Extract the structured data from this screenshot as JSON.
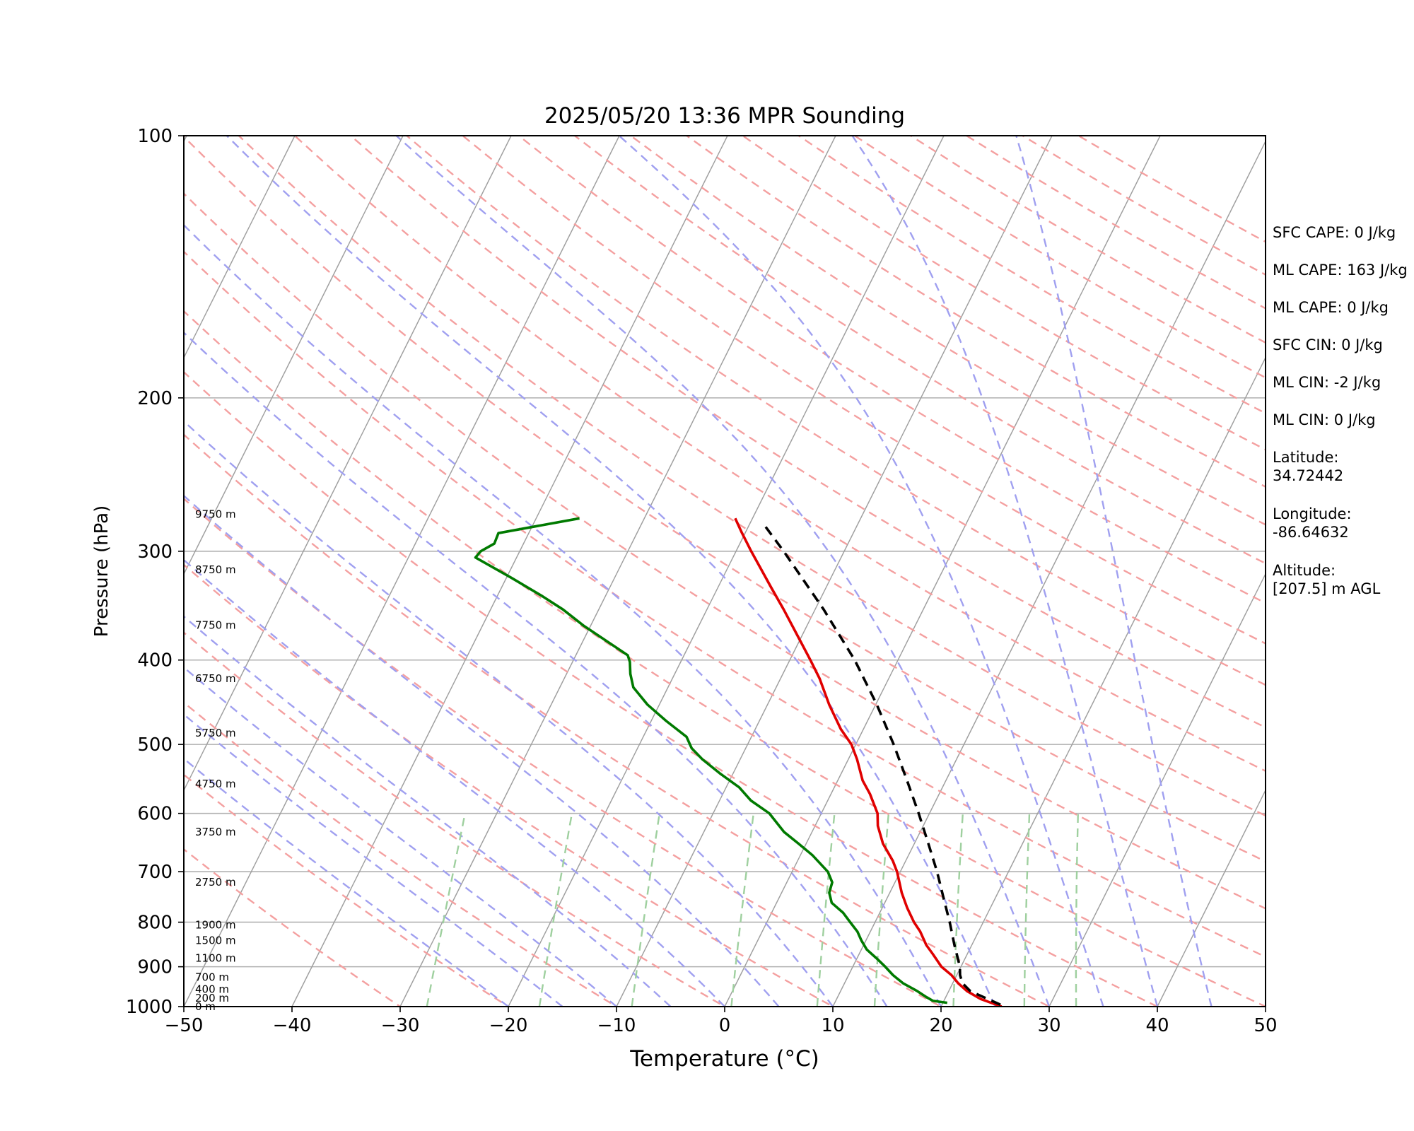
{
  "chart_data": {
    "type": "line",
    "title": "2025/05/20 13:36 MPR Sounding",
    "xlabel": "Temperature (°C)",
    "ylabel": "Pressure (hPa)",
    "xlim": [
      -50,
      50
    ],
    "ylim": [
      1000,
      100
    ],
    "y_scale": "log",
    "grid": true,
    "x_ticks": [
      "−50",
      "−40",
      "−30",
      "−20",
      "−10",
      "0",
      "10",
      "20",
      "30",
      "40",
      "50"
    ],
    "x_tick_values": [
      -50,
      -40,
      -30,
      -20,
      -10,
      0,
      10,
      20,
      30,
      40,
      50
    ],
    "y_ticks": [
      "100",
      "200",
      "300",
      "400",
      "500",
      "600",
      "700",
      "800",
      "900",
      "1000"
    ],
    "y_tick_values": [
      100,
      200,
      300,
      400,
      500,
      600,
      700,
      800,
      900,
      1000
    ],
    "series": [
      {
        "color": "#e00000",
        "style": "solid",
        "points": [
          [
            1000,
            25.6
          ],
          [
            980,
            23.3
          ],
          [
            960,
            21.7
          ],
          [
            940,
            20.5
          ],
          [
            920,
            19.5
          ],
          [
            900,
            18.2
          ],
          [
            870,
            16.8
          ],
          [
            850,
            15.8
          ],
          [
            820,
            14.6
          ],
          [
            800,
            13.6
          ],
          [
            770,
            12.3
          ],
          [
            740,
            11.1
          ],
          [
            700,
            9.7
          ],
          [
            680,
            8.8
          ],
          [
            650,
            7.1
          ],
          [
            620,
            5.8
          ],
          [
            600,
            5.2
          ],
          [
            570,
            3.6
          ],
          [
            550,
            2.3
          ],
          [
            520,
            0.8
          ],
          [
            500,
            -0.4
          ],
          [
            480,
            -2.1
          ],
          [
            450,
            -4.3
          ],
          [
            420,
            -6.4
          ],
          [
            400,
            -8.1
          ],
          [
            370,
            -10.9
          ],
          [
            350,
            -12.9
          ],
          [
            330,
            -15.1
          ],
          [
            300,
            -18.6
          ],
          [
            285,
            -20.4
          ],
          [
            275,
            -21.6
          ]
        ]
      },
      {
        "color": "#007a00",
        "style": "solid",
        "points": [
          [
            990,
            20.4
          ],
          [
            985,
            19.0
          ],
          [
            975,
            18.2
          ],
          [
            960,
            17.1
          ],
          [
            940,
            15.4
          ],
          [
            920,
            14.1
          ],
          [
            900,
            13.0
          ],
          [
            880,
            11.8
          ],
          [
            860,
            10.5
          ],
          [
            840,
            9.6
          ],
          [
            820,
            8.8
          ],
          [
            800,
            7.7
          ],
          [
            780,
            6.6
          ],
          [
            760,
            5.1
          ],
          [
            740,
            4.4
          ],
          [
            720,
            4.2
          ],
          [
            700,
            3.3
          ],
          [
            670,
            1.1
          ],
          [
            650,
            -0.7
          ],
          [
            630,
            -2.6
          ],
          [
            600,
            -4.8
          ],
          [
            580,
            -7.1
          ],
          [
            560,
            -8.8
          ],
          [
            540,
            -11.2
          ],
          [
            520,
            -13.5
          ],
          [
            505,
            -15.0
          ],
          [
            490,
            -16.0
          ],
          [
            470,
            -18.6
          ],
          [
            450,
            -21.1
          ],
          [
            430,
            -23.2
          ],
          [
            415,
            -24.1
          ],
          [
            402,
            -24.7
          ],
          [
            395,
            -25.2
          ],
          [
            380,
            -27.9
          ],
          [
            365,
            -30.7
          ],
          [
            350,
            -33.3
          ],
          [
            338,
            -35.8
          ],
          [
            322,
            -39.5
          ],
          [
            305,
            -43.8
          ],
          [
            300,
            -43.6
          ],
          [
            294,
            -42.7
          ],
          [
            286,
            -42.8
          ],
          [
            275,
            -36.0
          ]
        ]
      },
      {
        "color": "#000000",
        "style": "dashed",
        "points": [
          [
            995,
            25.4
          ],
          [
            960,
            22.0
          ],
          [
            940,
            20.9
          ],
          [
            920,
            20.3
          ],
          [
            900,
            19.9
          ],
          [
            850,
            18.4
          ],
          [
            800,
            16.9
          ],
          [
            750,
            15.2
          ],
          [
            700,
            13.4
          ],
          [
            650,
            11.3
          ],
          [
            600,
            9.0
          ],
          [
            550,
            6.4
          ],
          [
            500,
            3.5
          ],
          [
            450,
            0.1
          ],
          [
            400,
            -4.0
          ],
          [
            350,
            -9.2
          ],
          [
            300,
            -15.6
          ],
          [
            278,
            -18.9
          ]
        ]
      }
    ],
    "height_labels": [
      {
        "p": 1000,
        "text": "0 m"
      },
      {
        "p": 978,
        "text": "200 m"
      },
      {
        "p": 955,
        "text": "400 m"
      },
      {
        "p": 925,
        "text": "700 m"
      },
      {
        "p": 880,
        "text": "1100 m"
      },
      {
        "p": 840,
        "text": "1500 m"
      },
      {
        "p": 806,
        "text": "1900 m"
      },
      {
        "p": 720,
        "text": "2750 m"
      },
      {
        "p": 630,
        "text": "3750 m"
      },
      {
        "p": 555,
        "text": "4750 m"
      },
      {
        "p": 485,
        "text": "5750 m"
      },
      {
        "p": 420,
        "text": "6750 m"
      },
      {
        "p": 365,
        "text": "7750 m"
      },
      {
        "p": 315,
        "text": "8750 m"
      },
      {
        "p": 272,
        "text": "9750 m"
      }
    ]
  },
  "info": {
    "sfc_cape": "SFC CAPE: 0 J/kg",
    "ml_cape_1": "ML CAPE: 163 J/kg",
    "ml_cape_2": "ML CAPE: 0 J/kg",
    "sfc_cin": "SFC CIN: 0 J/kg",
    "ml_cin_1": "ML CIN: -2 J/kg",
    "ml_cin_2": "ML CIN: 0 J/kg",
    "latitude": "Latitude:\n34.72442",
    "longitude": "Longitude:\n-86.64632",
    "altitude": "Altitude:\n[207.5] m AGL"
  },
  "colors": {
    "isobar": "#b0b0b0",
    "isotherm": "#a0a0a0",
    "dry_adiabat": "#f4a0a0",
    "moist_adiabat": "#a0a0f0",
    "mixing_ratio": "#9fd09f"
  }
}
